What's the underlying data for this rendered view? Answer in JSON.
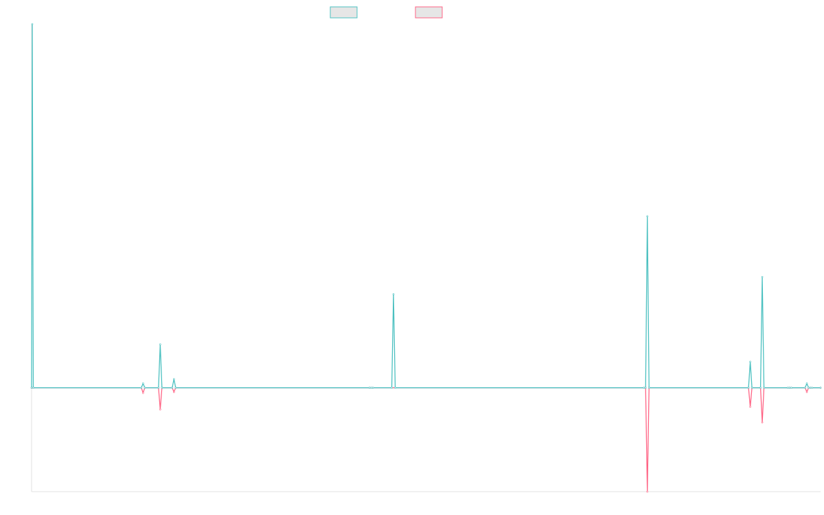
{
  "colors": {
    "series_a": "#4bc0c0",
    "series_b": "#ff6384",
    "legend_fill": "#e6e6e6",
    "axis": "#e0e0e0"
  },
  "chart_data": {
    "type": "line",
    "title": "",
    "xlabel": "",
    "ylabel": "",
    "grid": false,
    "legend": "top-center",
    "x_range": [
      0,
      460
    ],
    "ylim": [
      -6,
      21
    ],
    "series": [
      {
        "name": "",
        "color": "#4bc0c0",
        "points": [
          [
            0,
            0
          ],
          [
            0.4,
            21
          ],
          [
            1,
            0
          ],
          [
            64,
            0
          ],
          [
            65,
            0.25
          ],
          [
            66,
            0
          ],
          [
            74,
            0
          ],
          [
            75,
            2.5
          ],
          [
            76,
            0
          ],
          [
            82,
            0
          ],
          [
            83,
            0.5
          ],
          [
            84,
            0
          ],
          [
            197,
            0
          ],
          [
            198,
            0
          ],
          [
            199,
            0
          ],
          [
            210,
            0
          ],
          [
            211,
            5.4
          ],
          [
            212,
            0
          ],
          [
            357,
            0
          ],
          [
            358,
            0
          ],
          [
            359,
            9.9
          ],
          [
            360,
            0
          ],
          [
            418,
            0
          ],
          [
            419,
            1.5
          ],
          [
            420,
            0
          ],
          [
            425,
            0
          ],
          [
            426,
            6.4
          ],
          [
            427,
            0
          ],
          [
            441,
            0
          ],
          [
            442,
            0
          ],
          [
            443,
            0
          ],
          [
            451,
            0
          ],
          [
            452,
            0.25
          ],
          [
            453,
            0
          ],
          [
            454,
            0
          ],
          [
            455,
            0
          ],
          [
            460,
            0
          ]
        ]
      },
      {
        "name": "",
        "color": "#ff6384",
        "points": [
          [
            0,
            0
          ],
          [
            1,
            0
          ],
          [
            64,
            0
          ],
          [
            65,
            -0.3
          ],
          [
            66,
            0
          ],
          [
            74,
            0
          ],
          [
            75,
            -1.25
          ],
          [
            76,
            0
          ],
          [
            82,
            0
          ],
          [
            83,
            -0.25
          ],
          [
            84,
            0
          ],
          [
            197,
            0
          ],
          [
            198,
            0
          ],
          [
            199,
            0
          ],
          [
            357,
            0
          ],
          [
            358,
            0
          ],
          [
            359,
            -6
          ],
          [
            360,
            0
          ],
          [
            418,
            0
          ],
          [
            419,
            -1.1
          ],
          [
            420,
            0
          ],
          [
            425,
            0
          ],
          [
            426,
            -2
          ],
          [
            427,
            0
          ],
          [
            441,
            0
          ],
          [
            442,
            0
          ],
          [
            443,
            0
          ],
          [
            451,
            0
          ],
          [
            452,
            -0.25
          ],
          [
            453,
            0
          ],
          [
            454,
            0
          ],
          [
            455,
            0
          ],
          [
            460,
            0
          ]
        ]
      }
    ]
  }
}
